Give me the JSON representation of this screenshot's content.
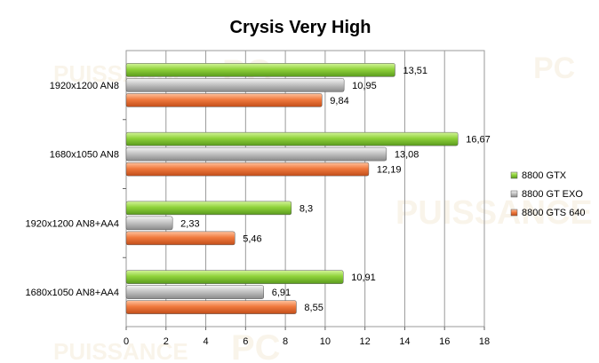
{
  "chart_data": {
    "type": "bar",
    "orientation": "horizontal",
    "title": "Crysis Very High",
    "categories": [
      "1920x1200 AN8",
      "1680x1050 AN8",
      "1920x1200 AN8+AA4",
      "1680x1050 AN8+AA4"
    ],
    "series": [
      {
        "name": "8800 GTX",
        "values": [
          13.51,
          16.67,
          8.3,
          10.91
        ],
        "labels": [
          "13,51",
          "16,67",
          "8,3",
          "10,91"
        ],
        "color": "#8fd23a"
      },
      {
        "name": "8800 GT EXO",
        "values": [
          10.95,
          13.08,
          2.33,
          6.91
        ],
        "labels": [
          "10,95",
          "13,08",
          "2,33",
          "6,91"
        ],
        "color": "#c0c0c0"
      },
      {
        "name": "8800 GTS 640",
        "values": [
          9.84,
          12.19,
          5.46,
          8.55
        ],
        "labels": [
          "9,84",
          "12,19",
          "5,46",
          "8,55"
        ],
        "color": "#f07a3e"
      }
    ],
    "xlim": [
      0,
      18
    ],
    "xticks": [
      "0",
      "2",
      "4",
      "6",
      "8",
      "10",
      "12",
      "14",
      "16",
      "18"
    ],
    "grid": "vertical",
    "legend_position": "right"
  },
  "watermark_text": "PUISSANCE PC"
}
